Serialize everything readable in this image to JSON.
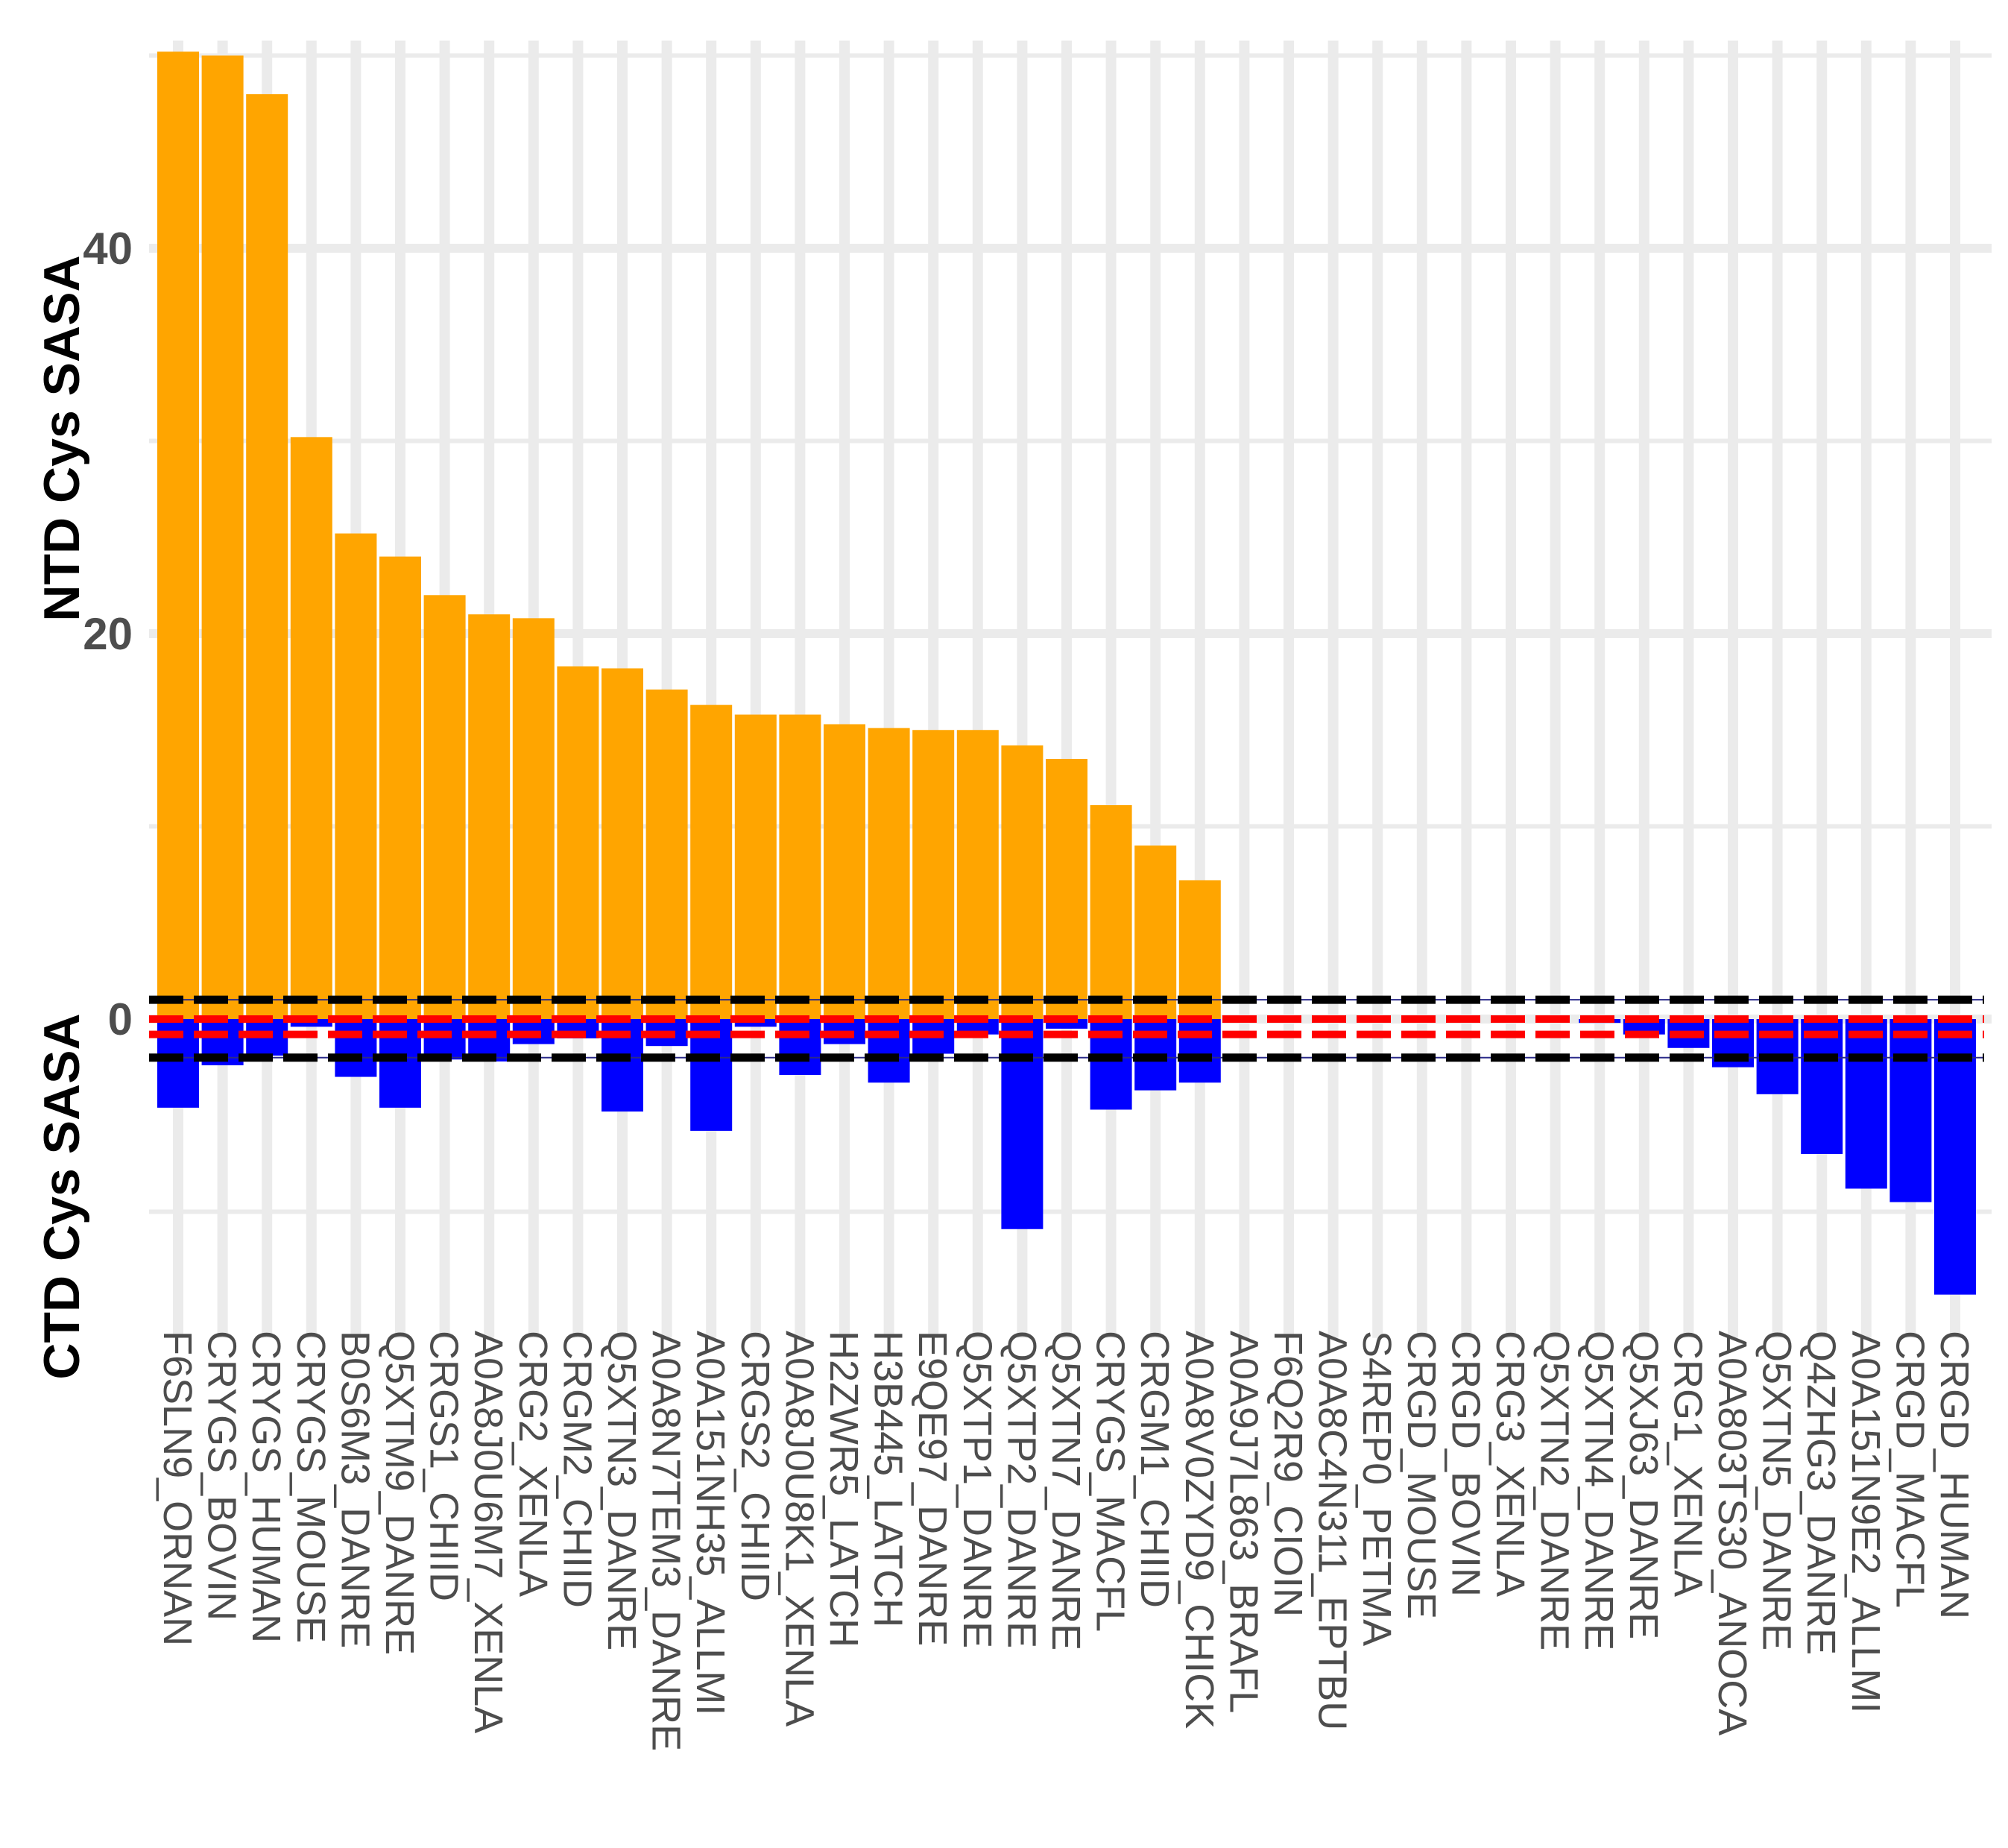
{
  "chart_data": {
    "type": "bar",
    "title": "",
    "ylabel_top": "NTD Cys SASA",
    "ylabel_bottom": "CTD Cys SASA",
    "xlabel": "",
    "ylim": [
      -15,
      50
    ],
    "y_ticks": [
      0,
      20,
      40
    ],
    "y_tick_labels": [
      "0",
      "20",
      "40"
    ],
    "grid": true,
    "reference_lines": {
      "black_dashed": [
        1.0,
        -2.0
      ],
      "red_dashed": [
        0,
        -0.8
      ],
      "blue_thin": [
        1.0,
        -2.0
      ]
    },
    "categories": [
      "F6SLN9_ORNAN",
      "CRYGS_BOVIN",
      "CRYGS_HUMAN",
      "CRYGS_MOUSE",
      "B0S6M3_DANRE",
      "Q5XTM9_DANRE",
      "CRGS1_CHIID",
      "A0A8J0U6M7_XENLA",
      "CRG2_XENLA",
      "CRGM2_CHIID",
      "Q5XTN3_DANRE",
      "A0A8N7TEM3_DANRE",
      "A0A151NH35_ALLMI",
      "CRGS2_CHIID",
      "A0A8J0U8K1_XENLA",
      "H2ZWR5_LATCH",
      "H3B445_LATCH",
      "E9QE97_DANRE",
      "Q5XTP1_DANRE",
      "Q5XTP2_DANRE",
      "Q5XTN7_DANRE",
      "CRYGS_MACFL",
      "CRGM1_CHIID",
      "A0A8V0ZYD9_CHICK",
      "A0A9J7L863_BRAFL",
      "F6Q2R9_CIOIN",
      "A0A8C4N311_EPTBU",
      "S4REP0_PETMA",
      "CRGD_MOUSE",
      "CRGD_BOVIN",
      "CRG3_XENLA",
      "Q5XTN2_DANRE",
      "Q5XTN4_DANRE",
      "Q5XJ63_DANRE",
      "CRG1_XENLA",
      "A0A803TS30_ANOCA",
      "Q5XTN5_DANRE",
      "Q4ZHG3_DANRE",
      "A0A151N9E2_ALLMI",
      "CRGD_MACFL",
      "CRGD_HUMAN"
    ],
    "series": [
      {
        "name": "NTD Cys SASA",
        "color": "#FFA500",
        "values": [
          50.2,
          50.0,
          48.0,
          30.2,
          25.2,
          24.0,
          22.0,
          21.0,
          20.8,
          18.3,
          18.2,
          17.1,
          16.3,
          15.8,
          15.8,
          15.3,
          15.1,
          15.0,
          15.0,
          14.2,
          13.5,
          11.1,
          9.0,
          7.2,
          0,
          0,
          0,
          0,
          0,
          0,
          0,
          0,
          0,
          0,
          0,
          0,
          0,
          0,
          0,
          0,
          0
        ]
      },
      {
        "name": "CTD Cys SASA",
        "color": "#0000FF",
        "values": [
          -4.6,
          -2.4,
          -1.9,
          -0.4,
          -3.0,
          -4.6,
          -2.1,
          -2.2,
          -1.3,
          -1.0,
          -4.8,
          -1.4,
          -5.8,
          -0.4,
          -2.9,
          -1.3,
          -3.3,
          -1.8,
          -0.8,
          -10.9,
          -0.5,
          -4.7,
          -3.7,
          -3.3,
          0,
          0,
          0,
          0,
          0,
          0,
          0,
          0,
          -0.2,
          -0.8,
          -1.5,
          -2.5,
          -3.9,
          -7.0,
          -8.8,
          -9.5,
          -14.3
        ]
      }
    ]
  }
}
